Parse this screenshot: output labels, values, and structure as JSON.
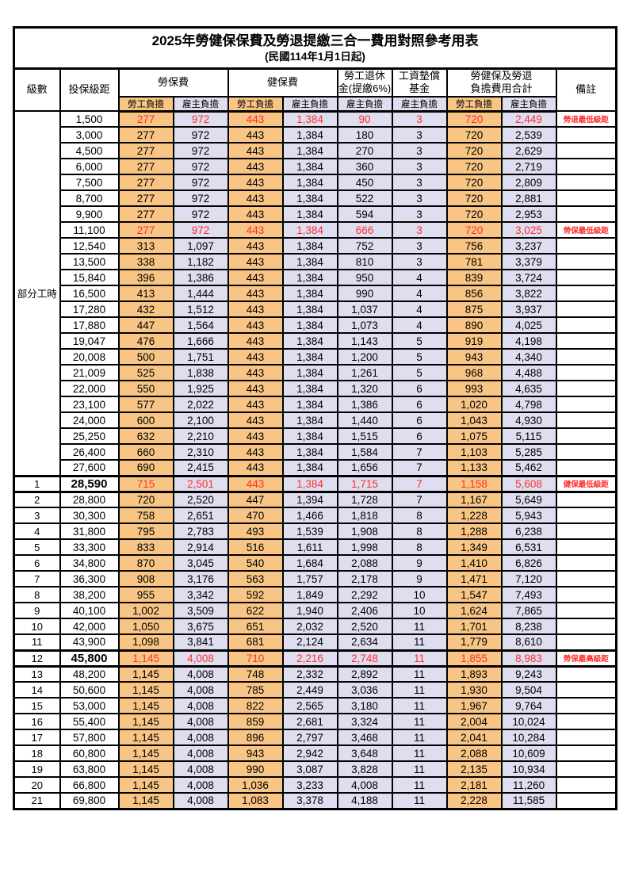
{
  "title": "2025年勞健保保費及勞退提繳三合一費用對照參考用表",
  "subtitle": "(民國114年1月1日起)",
  "colors": {
    "employee_bg": "#F8C585",
    "employer_bg": "#DEDEF0",
    "highlight_text": "#FF2D2D",
    "grid": "#000000"
  },
  "columns": {
    "level": "級數",
    "bracket": "投保級距",
    "labor_ins": "勞保費",
    "health_ins": "健保費",
    "pension_line1": "勞工退休",
    "pension_line2": "金(提繳6%)",
    "wage_fund_line1": "工資墊償",
    "wage_fund_line2": "基金",
    "total_line1": "勞健保及勞退",
    "total_line2": "負擔費用合計",
    "note": "備註",
    "employee": "勞工負擔",
    "employer": "雇主負擔"
  },
  "part_time_label": "部分工時",
  "rows": [
    {
      "level": "",
      "bracket": "1,500",
      "values": [
        "277",
        "972",
        "443",
        "1,384",
        "90",
        "3",
        "720",
        "2,449"
      ],
      "note": "勞退最低級距",
      "highlight": true
    },
    {
      "level": "",
      "bracket": "3,000",
      "values": [
        "277",
        "972",
        "443",
        "1,384",
        "180",
        "3",
        "720",
        "2,539"
      ],
      "note": ""
    },
    {
      "level": "",
      "bracket": "4,500",
      "values": [
        "277",
        "972",
        "443",
        "1,384",
        "270",
        "3",
        "720",
        "2,629"
      ],
      "note": ""
    },
    {
      "level": "",
      "bracket": "6,000",
      "values": [
        "277",
        "972",
        "443",
        "1,384",
        "360",
        "3",
        "720",
        "2,719"
      ],
      "note": ""
    },
    {
      "level": "",
      "bracket": "7,500",
      "values": [
        "277",
        "972",
        "443",
        "1,384",
        "450",
        "3",
        "720",
        "2,809"
      ],
      "note": ""
    },
    {
      "level": "",
      "bracket": "8,700",
      "values": [
        "277",
        "972",
        "443",
        "1,384",
        "522",
        "3",
        "720",
        "2,881"
      ],
      "note": ""
    },
    {
      "level": "",
      "bracket": "9,900",
      "values": [
        "277",
        "972",
        "443",
        "1,384",
        "594",
        "3",
        "720",
        "2,953"
      ],
      "note": ""
    },
    {
      "level": "",
      "bracket": "11,100",
      "values": [
        "277",
        "972",
        "443",
        "1,384",
        "666",
        "3",
        "720",
        "3,025"
      ],
      "note": "勞保最低級距",
      "highlight": true
    },
    {
      "level": "",
      "bracket": "12,540",
      "values": [
        "313",
        "1,097",
        "443",
        "1,384",
        "752",
        "3",
        "756",
        "3,237"
      ],
      "note": ""
    },
    {
      "level": "",
      "bracket": "13,500",
      "values": [
        "338",
        "1,182",
        "443",
        "1,384",
        "810",
        "3",
        "781",
        "3,379"
      ],
      "note": ""
    },
    {
      "level": "",
      "bracket": "15,840",
      "values": [
        "396",
        "1,386",
        "443",
        "1,384",
        "950",
        "4",
        "839",
        "3,724"
      ],
      "note": ""
    },
    {
      "level": "",
      "bracket": "16,500",
      "values": [
        "413",
        "1,444",
        "443",
        "1,384",
        "990",
        "4",
        "856",
        "3,822"
      ],
      "note": ""
    },
    {
      "level": "",
      "bracket": "17,280",
      "values": [
        "432",
        "1,512",
        "443",
        "1,384",
        "1,037",
        "4",
        "875",
        "3,937"
      ],
      "note": ""
    },
    {
      "level": "",
      "bracket": "17,880",
      "values": [
        "447",
        "1,564",
        "443",
        "1,384",
        "1,073",
        "4",
        "890",
        "4,025"
      ],
      "note": ""
    },
    {
      "level": "",
      "bracket": "19,047",
      "values": [
        "476",
        "1,666",
        "443",
        "1,384",
        "1,143",
        "5",
        "919",
        "4,198"
      ],
      "note": ""
    },
    {
      "level": "",
      "bracket": "20,008",
      "values": [
        "500",
        "1,751",
        "443",
        "1,384",
        "1,200",
        "5",
        "943",
        "4,340"
      ],
      "note": ""
    },
    {
      "level": "",
      "bracket": "21,009",
      "values": [
        "525",
        "1,838",
        "443",
        "1,384",
        "1,261",
        "5",
        "968",
        "4,488"
      ],
      "note": ""
    },
    {
      "level": "",
      "bracket": "22,000",
      "values": [
        "550",
        "1,925",
        "443",
        "1,384",
        "1,320",
        "6",
        "993",
        "4,635"
      ],
      "note": ""
    },
    {
      "level": "",
      "bracket": "23,100",
      "values": [
        "577",
        "2,022",
        "443",
        "1,384",
        "1,386",
        "6",
        "1,020",
        "4,798"
      ],
      "note": ""
    },
    {
      "level": "",
      "bracket": "24,000",
      "values": [
        "600",
        "2,100",
        "443",
        "1,384",
        "1,440",
        "6",
        "1,043",
        "4,930"
      ],
      "note": ""
    },
    {
      "level": "",
      "bracket": "25,250",
      "values": [
        "632",
        "2,210",
        "443",
        "1,384",
        "1,515",
        "6",
        "1,075",
        "5,115"
      ],
      "note": ""
    },
    {
      "level": "",
      "bracket": "26,400",
      "values": [
        "660",
        "2,310",
        "443",
        "1,384",
        "1,584",
        "7",
        "1,103",
        "5,285"
      ],
      "note": ""
    },
    {
      "level": "",
      "bracket": "27,600",
      "values": [
        "690",
        "2,415",
        "443",
        "1,384",
        "1,656",
        "7",
        "1,133",
        "5,462"
      ],
      "note": ""
    },
    {
      "level": "1",
      "bracket": "28,590",
      "values": [
        "715",
        "2,501",
        "443",
        "1,384",
        "1,715",
        "7",
        "1,158",
        "5,608"
      ],
      "note": "健保最低級距",
      "highlight": true,
      "bold": true,
      "frame": true
    },
    {
      "level": "2",
      "bracket": "28,800",
      "values": [
        "720",
        "2,520",
        "447",
        "1,394",
        "1,728",
        "7",
        "1,167",
        "5,649"
      ],
      "note": ""
    },
    {
      "level": "3",
      "bracket": "30,300",
      "values": [
        "758",
        "2,651",
        "470",
        "1,466",
        "1,818",
        "8",
        "1,228",
        "5,943"
      ],
      "note": ""
    },
    {
      "level": "4",
      "bracket": "31,800",
      "values": [
        "795",
        "2,783",
        "493",
        "1,539",
        "1,908",
        "8",
        "1,288",
        "6,238"
      ],
      "note": ""
    },
    {
      "level": "5",
      "bracket": "33,300",
      "values": [
        "833",
        "2,914",
        "516",
        "1,611",
        "1,998",
        "8",
        "1,349",
        "6,531"
      ],
      "note": ""
    },
    {
      "level": "6",
      "bracket": "34,800",
      "values": [
        "870",
        "3,045",
        "540",
        "1,684",
        "2,088",
        "9",
        "1,410",
        "6,826"
      ],
      "note": ""
    },
    {
      "level": "7",
      "bracket": "36,300",
      "values": [
        "908",
        "3,176",
        "563",
        "1,757",
        "2,178",
        "9",
        "1,471",
        "7,120"
      ],
      "note": ""
    },
    {
      "level": "8",
      "bracket": "38,200",
      "values": [
        "955",
        "3,342",
        "592",
        "1,849",
        "2,292",
        "10",
        "1,547",
        "7,493"
      ],
      "note": ""
    },
    {
      "level": "9",
      "bracket": "40,100",
      "values": [
        "1,002",
        "3,509",
        "622",
        "1,940",
        "2,406",
        "10",
        "1,624",
        "7,865"
      ],
      "note": ""
    },
    {
      "level": "10",
      "bracket": "42,000",
      "values": [
        "1,050",
        "3,675",
        "651",
        "2,032",
        "2,520",
        "11",
        "1,701",
        "8,238"
      ],
      "note": ""
    },
    {
      "level": "11",
      "bracket": "43,900",
      "values": [
        "1,098",
        "3,841",
        "681",
        "2,124",
        "2,634",
        "11",
        "1,779",
        "8,610"
      ],
      "note": ""
    },
    {
      "level": "12",
      "bracket": "45,800",
      "values": [
        "1,145",
        "4,008",
        "710",
        "2,216",
        "2,748",
        "11",
        "1,855",
        "8,983"
      ],
      "note": "勞保最高級距",
      "highlight": true,
      "bold": true,
      "frame": true
    },
    {
      "level": "13",
      "bracket": "48,200",
      "values": [
        "1,145",
        "4,008",
        "748",
        "2,332",
        "2,892",
        "11",
        "1,893",
        "9,243"
      ],
      "note": ""
    },
    {
      "level": "14",
      "bracket": "50,600",
      "values": [
        "1,145",
        "4,008",
        "785",
        "2,449",
        "3,036",
        "11",
        "1,930",
        "9,504"
      ],
      "note": ""
    },
    {
      "level": "15",
      "bracket": "53,000",
      "values": [
        "1,145",
        "4,008",
        "822",
        "2,565",
        "3,180",
        "11",
        "1,967",
        "9,764"
      ],
      "note": ""
    },
    {
      "level": "16",
      "bracket": "55,400",
      "values": [
        "1,145",
        "4,008",
        "859",
        "2,681",
        "3,324",
        "11",
        "2,004",
        "10,024"
      ],
      "note": ""
    },
    {
      "level": "17",
      "bracket": "57,800",
      "values": [
        "1,145",
        "4,008",
        "896",
        "2,797",
        "3,468",
        "11",
        "2,041",
        "10,284"
      ],
      "note": ""
    },
    {
      "level": "18",
      "bracket": "60,800",
      "values": [
        "1,145",
        "4,008",
        "943",
        "2,942",
        "3,648",
        "11",
        "2,088",
        "10,609"
      ],
      "note": ""
    },
    {
      "level": "19",
      "bracket": "63,800",
      "values": [
        "1,145",
        "4,008",
        "990",
        "3,087",
        "3,828",
        "11",
        "2,135",
        "10,934"
      ],
      "note": ""
    },
    {
      "level": "20",
      "bracket": "66,800",
      "values": [
        "1,145",
        "4,008",
        "1,036",
        "3,233",
        "4,008",
        "11",
        "2,181",
        "11,260"
      ],
      "note": ""
    },
    {
      "level": "21",
      "bracket": "69,800",
      "values": [
        "1,145",
        "4,008",
        "1,083",
        "3,378",
        "4,188",
        "11",
        "2,228",
        "11,585"
      ],
      "note": ""
    }
  ]
}
